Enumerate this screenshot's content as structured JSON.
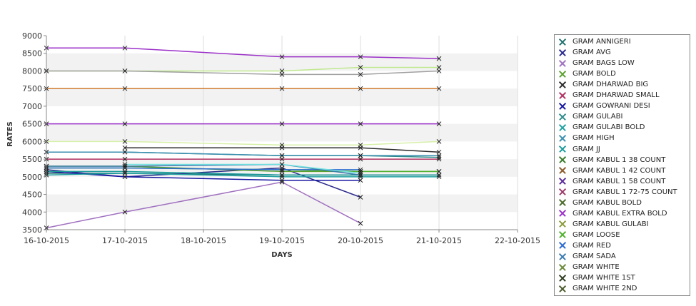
{
  "chart_data": {
    "type": "line",
    "xlabel": "DAYS",
    "ylabel": "RATES",
    "ylim": [
      3500,
      9000
    ],
    "yticks": [
      3500,
      4000,
      4500,
      5000,
      5500,
      6000,
      6500,
      7000,
      7500,
      8000,
      8500,
      9000
    ],
    "x_ticks": [
      "16-10-2015",
      "17-10-2015",
      "18-10-2015",
      "19-10-2015",
      "20-10-2015",
      "21-10-2015",
      "22-10-2015"
    ],
    "grid": true,
    "legend_position": "right",
    "series": [
      {
        "name": "GRAM ANNIGERI",
        "color": "#1f6f6f",
        "points": [
          [
            "16-10-2015",
            5100
          ],
          [
            "17-10-2015",
            5100
          ],
          [
            "19-10-2015",
            5050
          ],
          [
            "20-10-2015",
            5050
          ],
          [
            "21-10-2015",
            5050
          ]
        ]
      },
      {
        "name": "GRAM AVG",
        "color": "#2a2a8c",
        "points": [
          [
            "16-10-2015",
            5200
          ],
          [
            "17-10-2015",
            5000
          ],
          [
            "19-10-2015",
            5250
          ],
          [
            "20-10-2015",
            4420
          ]
        ]
      },
      {
        "name": "GRAM BAGS LOW",
        "color": "#a070c0",
        "points": [
          [
            "16-10-2015",
            3550
          ],
          [
            "17-10-2015",
            4000
          ],
          [
            "19-10-2015",
            4850
          ],
          [
            "20-10-2015",
            3680
          ]
        ]
      },
      {
        "name": "GRAM BOLD",
        "color": "#5aa02c",
        "points": [
          [
            "16-10-2015",
            5300
          ],
          [
            "17-10-2015",
            5300
          ],
          [
            "19-10-2015",
            5150
          ],
          [
            "20-10-2015",
            5150
          ],
          [
            "21-10-2015",
            5150
          ]
        ]
      },
      {
        "name": "GRAM DHARWAD BIG",
        "color": "#2b2b2b",
        "points": [
          [
            "17-10-2015",
            5820
          ],
          [
            "19-10-2015",
            5820
          ],
          [
            "20-10-2015",
            5820
          ],
          [
            "21-10-2015",
            5700
          ]
        ]
      },
      {
        "name": "GRAM DHARWAD SMALL",
        "color": "#b03060",
        "points": [
          [
            "16-10-2015",
            5500
          ],
          [
            "17-10-2015",
            5500
          ],
          [
            "19-10-2015",
            5500
          ],
          [
            "20-10-2015",
            5500
          ],
          [
            "21-10-2015",
            5500
          ]
        ]
      },
      {
        "name": "GRAM GOWRANI DESI",
        "color": "#1515a0",
        "points": [
          [
            "16-10-2015",
            5150
          ],
          [
            "17-10-2015",
            5000
          ],
          [
            "19-10-2015",
            4900
          ],
          [
            "20-10-2015",
            4900
          ]
        ]
      },
      {
        "name": "GRAM GULABI",
        "color": "#2e8b8b",
        "points": [
          [
            "16-10-2015",
            5700
          ],
          [
            "17-10-2015",
            5700
          ],
          [
            "19-10-2015",
            5600
          ],
          [
            "20-10-2015",
            5600
          ],
          [
            "21-10-2015",
            5550
          ]
        ]
      },
      {
        "name": "GRAM GULABI BOLD",
        "color": "#20a0a0",
        "points": [
          [
            "16-10-2015",
            5050
          ],
          [
            "17-10-2015",
            5100
          ],
          [
            "19-10-2015",
            5000
          ],
          [
            "20-10-2015",
            5000
          ],
          [
            "21-10-2015",
            5000
          ]
        ]
      },
      {
        "name": "GRAM HIGH",
        "color": "#3a8fb0",
        "points": [
          [
            "16-10-2015",
            5700
          ],
          [
            "17-10-2015",
            5700
          ],
          [
            "19-10-2015",
            5600
          ],
          [
            "20-10-2015",
            5600
          ],
          [
            "21-10-2015",
            5600
          ]
        ]
      },
      {
        "name": "GRAM JJ",
        "color": "#1a9a9a",
        "points": [
          [
            "16-10-2015",
            5150
          ],
          [
            "17-10-2015",
            5150
          ],
          [
            "19-10-2015",
            5050
          ],
          [
            "20-10-2015",
            5050
          ],
          [
            "21-10-2015",
            5050
          ]
        ]
      },
      {
        "name": "GRAM KABUL 1 38 COUNT",
        "color": "#3a7a2a",
        "points": []
      },
      {
        "name": "GRAM KABUL 1 42 COUNT",
        "color": "#8b5a2b",
        "points": []
      },
      {
        "name": "GRAM KABUL 1 58 COUNT",
        "color": "#5a2a9a",
        "points": []
      },
      {
        "name": "GRAM KABUL 1 72-75 COUNT",
        "color": "#9a3a6a",
        "points": []
      },
      {
        "name": "GRAM KABUL BOLD",
        "color": "#4a6a2a",
        "points": []
      },
      {
        "name": "GRAM KABUL EXTRA BOLD",
        "color": "#9b30c8",
        "points": [
          [
            "16-10-2015",
            8650
          ],
          [
            "17-10-2015",
            8650
          ],
          [
            "19-10-2015",
            8400
          ],
          [
            "20-10-2015",
            8400
          ],
          [
            "21-10-2015",
            8350
          ]
        ]
      },
      {
        "name": "GRAM KABUL GULABI",
        "color": "#8a9a3a",
        "points": []
      },
      {
        "name": "GRAM LOOSE",
        "color": "#4fb030",
        "points": [
          [
            "16-10-2015",
            5250
          ],
          [
            "17-10-2015",
            5250
          ],
          [
            "19-10-2015",
            5200
          ],
          [
            "20-10-2015",
            5150
          ],
          [
            "21-10-2015",
            5150
          ]
        ]
      },
      {
        "name": "GRAM RED",
        "color": "#2a6ad0",
        "points": [
          [
            "16-10-2015",
            5250
          ],
          [
            "17-10-2015",
            5250
          ],
          [
            "19-10-2015",
            5200
          ],
          [
            "20-10-2015",
            5200
          ]
        ]
      },
      {
        "name": "GRAM SADA",
        "color": "#3a7ab0",
        "points": [
          [
            "16-10-2015",
            5300
          ],
          [
            "17-10-2015",
            5300
          ],
          [
            "19-10-2015",
            5350
          ],
          [
            "20-10-2015",
            5050
          ]
        ]
      },
      {
        "name": "GRAM WHITE",
        "color": "#6a8a3a",
        "points": []
      },
      {
        "name": "GRAM WHITE 1ST",
        "color": "#2a3a1a",
        "points": []
      },
      {
        "name": "GRAM WHITE 2ND",
        "color": "#4a5a2a",
        "points": []
      },
      {
        "name": "",
        "color": "#d07a30",
        "points": [
          [
            "16-10-2015",
            7500
          ],
          [
            "17-10-2015",
            7500
          ],
          [
            "19-10-2015",
            7500
          ],
          [
            "20-10-2015",
            7500
          ],
          [
            "21-10-2015",
            7500
          ]
        ]
      },
      {
        "name": "",
        "color": "#9a30c8",
        "points": [
          [
            "16-10-2015",
            6500
          ],
          [
            "17-10-2015",
            6500
          ],
          [
            "19-10-2015",
            6500
          ],
          [
            "20-10-2015",
            6500
          ],
          [
            "21-10-2015",
            6500
          ]
        ]
      },
      {
        "name": "",
        "color": "#c0e890",
        "points": [
          [
            "16-10-2015",
            8000
          ],
          [
            "17-10-2015",
            8000
          ],
          [
            "19-10-2015",
            8000
          ],
          [
            "20-10-2015",
            8100
          ],
          [
            "21-10-2015",
            8100
          ]
        ]
      },
      {
        "name": "",
        "color": "#a0a0a0",
        "points": [
          [
            "16-10-2015",
            8000
          ],
          [
            "17-10-2015",
            8000
          ],
          [
            "19-10-2015",
            7900
          ],
          [
            "20-10-2015",
            7900
          ],
          [
            "21-10-2015",
            8000
          ]
        ]
      },
      {
        "name": "",
        "color": "#d8f0a8",
        "points": [
          [
            "16-10-2015",
            6000
          ],
          [
            "17-10-2015",
            6000
          ],
          [
            "19-10-2015",
            5900
          ],
          [
            "20-10-2015",
            5900
          ],
          [
            "21-10-2015",
            6000
          ]
        ]
      },
      {
        "name": "",
        "color": "#70e0e0",
        "points": [
          [
            "17-10-2015",
            5350
          ],
          [
            "19-10-2015",
            5350
          ],
          [
            "20-10-2015",
            5100
          ]
        ]
      }
    ]
  }
}
